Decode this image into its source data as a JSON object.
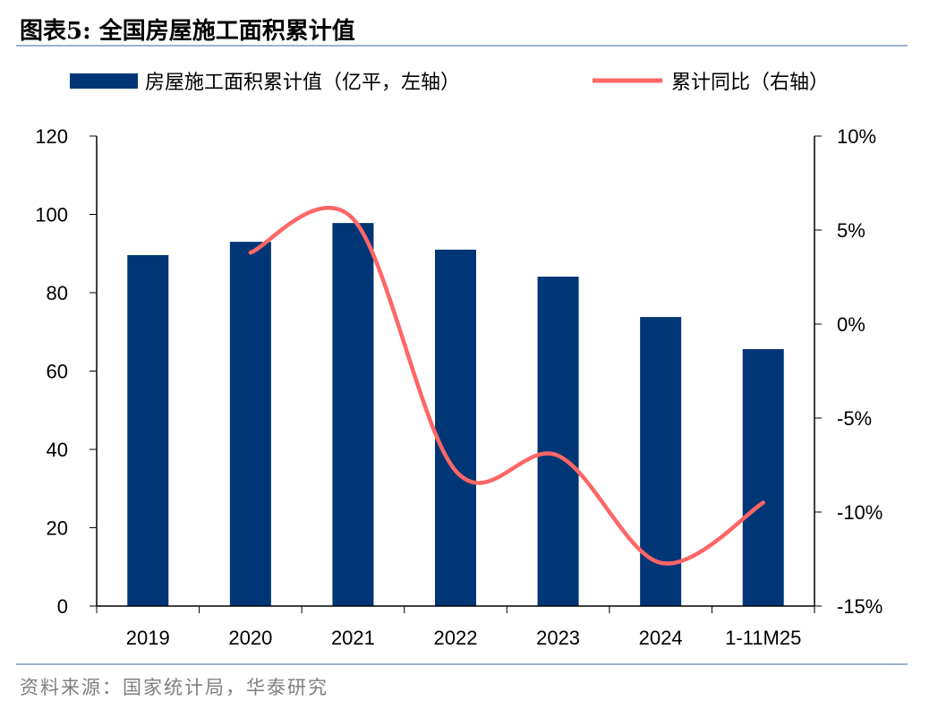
{
  "title": "图表5:   全国房屋施工面积累计值",
  "source": "资料来源：国家统计局，华泰研究",
  "chart_data": {
    "type": "bar+line",
    "categories": [
      "2019",
      "2020",
      "2021",
      "2022",
      "2023",
      "2024",
      "1-11M25"
    ],
    "series": [
      {
        "name": "房屋施工面积累计值（亿平，左轴）",
        "type": "bar",
        "axis": "left",
        "color": "#003676",
        "values": [
          89.6,
          93.0,
          97.8,
          91.0,
          84.1,
          73.8,
          65.6
        ]
      },
      {
        "name": "累计同比（右轴）",
        "type": "line",
        "axis": "right",
        "color": "#ff6666",
        "values": [
          null,
          3.8,
          5.6,
          -7.8,
          -7.0,
          -12.7,
          -9.5
        ]
      }
    ],
    "left_axis": {
      "ylim": [
        0,
        120
      ],
      "ticks": [
        "0",
        "20",
        "40",
        "60",
        "80",
        "100",
        "120"
      ]
    },
    "right_axis": {
      "ylim": [
        -15,
        10
      ],
      "ticks": [
        "-15%",
        "-10%",
        "-5%",
        "0%",
        "5%",
        "10%"
      ]
    },
    "legend_position": "top"
  }
}
